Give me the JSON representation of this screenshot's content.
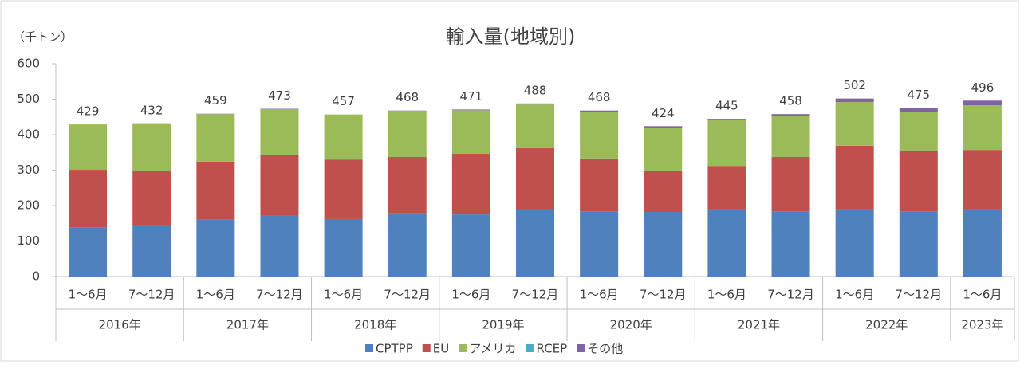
{
  "chart_data": {
    "type": "stacked_bar",
    "title": "輸入量(地域別)",
    "y_unit": "（千トン）",
    "categories": [
      "1～6月",
      "7～12月",
      "1～6月",
      "7～12月",
      "1～6月",
      "7～12月",
      "1～6月",
      "7～12月",
      "1～6月",
      "7～12月",
      "1～6月",
      "7～12月",
      "1～6月",
      "7～12月",
      "1～6月"
    ],
    "groups": [
      "2016年",
      null,
      "2017年",
      null,
      "2018年",
      null,
      "2019年",
      null,
      "2020年",
      null,
      "2021年",
      null,
      "2022年",
      null,
      "2023年"
    ],
    "series": [
      {
        "name": "CPTPP",
        "color": "#4f81bd",
        "values": [
          139,
          146,
          160,
          171,
          162,
          178,
          175,
          191,
          184,
          182,
          189,
          184,
          189,
          184,
          189
        ]
      },
      {
        "name": "EU",
        "color": "#c0504d",
        "values": [
          162,
          152,
          164,
          171,
          168,
          159,
          171,
          171,
          149,
          117,
          123,
          153,
          180,
          171,
          168
        ]
      },
      {
        "name": "アメリカ",
        "color": "#9bbb59",
        "values": [
          128,
          133,
          134,
          130,
          127,
          130,
          123,
          123,
          130,
          119,
          131,
          115,
          123,
          108,
          126
        ]
      },
      {
        "name": "RCEP",
        "color": "#4bacc6",
        "values": [
          0,
          0,
          0,
          0,
          0,
          0,
          0,
          0,
          0,
          0,
          0,
          0,
          0,
          0,
          0
        ]
      },
      {
        "name": "その他",
        "color": "#8064a2",
        "values": [
          0,
          1,
          1,
          1,
          0,
          1,
          2,
          3,
          5,
          6,
          2,
          6,
          10,
          12,
          13
        ]
      }
    ],
    "totals": [
      429,
      432,
      459,
      473,
      457,
      468,
      471,
      488,
      468,
      424,
      445,
      458,
      502,
      475,
      496
    ],
    "ylim": [
      0,
      600
    ],
    "yticks": [
      0,
      100,
      200,
      300,
      400,
      500,
      600
    ],
    "grid": false
  }
}
